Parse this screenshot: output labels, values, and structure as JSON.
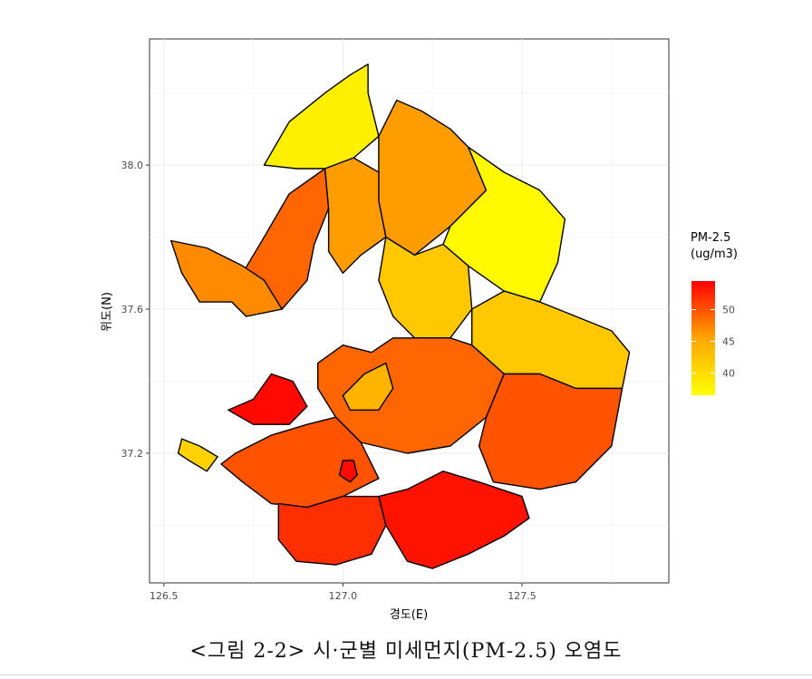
{
  "chart_data": {
    "type": "heatmap",
    "xlabel": "경도(E)",
    "ylabel": "위도(N)",
    "xlim": [
      126.46,
      127.91
    ],
    "ylim": [
      36.84,
      38.35
    ],
    "x_ticks": [
      "126.5",
      "127.0",
      "127.5"
    ],
    "y_ticks": [
      "37.2",
      "37.6",
      "38.0"
    ],
    "grid": true,
    "legend": {
      "title_line1": "PM-2.5",
      "title_line2": "(ug/m3)",
      "ticks": [
        "40",
        "45",
        "50"
      ],
      "min": 36.5,
      "max": 54.5,
      "placement": "right",
      "colors": [
        "#ffff00",
        "#ffa500",
        "#ff0000"
      ]
    },
    "regions": [
      {
        "value": 38,
        "poly": [
          [
            126.78,
            38.0
          ],
          [
            126.85,
            38.12
          ],
          [
            126.95,
            38.2
          ],
          [
            127.02,
            38.25
          ],
          [
            127.07,
            38.28
          ],
          [
            127.07,
            38.2
          ],
          [
            127.1,
            38.08
          ],
          [
            127.03,
            38.02
          ],
          [
            126.95,
            37.99
          ],
          [
            126.87,
            37.99
          ],
          [
            126.78,
            38.0
          ]
        ]
      },
      {
        "value": 46,
        "poly": [
          [
            127.1,
            38.08
          ],
          [
            127.15,
            38.18
          ],
          [
            127.22,
            38.15
          ],
          [
            127.3,
            38.1
          ],
          [
            127.35,
            38.05
          ],
          [
            127.4,
            37.93
          ],
          [
            127.3,
            37.83
          ],
          [
            127.2,
            37.75
          ],
          [
            127.12,
            37.8
          ],
          [
            127.1,
            37.9
          ],
          [
            127.1,
            38.08
          ]
        ]
      },
      {
        "value": 37,
        "poly": [
          [
            127.35,
            38.05
          ],
          [
            127.45,
            37.98
          ],
          [
            127.55,
            37.93
          ],
          [
            127.62,
            37.85
          ],
          [
            127.6,
            37.73
          ],
          [
            127.55,
            37.62
          ],
          [
            127.45,
            37.65
          ],
          [
            127.35,
            37.72
          ],
          [
            127.28,
            37.78
          ],
          [
            127.3,
            37.83
          ],
          [
            127.4,
            37.93
          ],
          [
            127.35,
            38.05
          ]
        ]
      },
      {
        "value": 49,
        "poly": [
          [
            126.69,
            37.62
          ],
          [
            126.72,
            37.7
          ],
          [
            126.78,
            37.8
          ],
          [
            126.85,
            37.92
          ],
          [
            126.95,
            37.99
          ],
          [
            126.96,
            37.88
          ],
          [
            126.92,
            37.78
          ],
          [
            126.9,
            37.68
          ],
          [
            126.83,
            37.6
          ],
          [
            126.73,
            37.58
          ],
          [
            126.69,
            37.62
          ]
        ]
      },
      {
        "value": 47,
        "poly": [
          [
            126.52,
            37.79
          ],
          [
            126.55,
            37.7
          ],
          [
            126.6,
            37.62
          ],
          [
            126.69,
            37.62
          ],
          [
            126.73,
            37.58
          ],
          [
            126.83,
            37.6
          ],
          [
            126.78,
            37.68
          ],
          [
            126.72,
            37.72
          ],
          [
            126.62,
            37.77
          ],
          [
            126.52,
            37.79
          ]
        ]
      },
      {
        "value": 46,
        "poly": [
          [
            126.95,
            37.99
          ],
          [
            127.03,
            38.02
          ],
          [
            127.1,
            37.98
          ],
          [
            127.1,
            37.9
          ],
          [
            127.12,
            37.8
          ],
          [
            127.05,
            37.75
          ],
          [
            127.0,
            37.7
          ],
          [
            126.96,
            37.76
          ],
          [
            126.96,
            37.88
          ],
          [
            126.95,
            37.99
          ]
        ]
      },
      {
        "value": 42,
        "poly": [
          [
            127.12,
            37.8
          ],
          [
            127.2,
            37.75
          ],
          [
            127.28,
            37.78
          ],
          [
            127.35,
            37.72
          ],
          [
            127.36,
            37.6
          ],
          [
            127.3,
            37.52
          ],
          [
            127.2,
            37.52
          ],
          [
            127.14,
            37.58
          ],
          [
            127.1,
            37.68
          ],
          [
            127.12,
            37.8
          ]
        ]
      },
      {
        "value": 42,
        "poly": [
          [
            127.36,
            37.6
          ],
          [
            127.45,
            37.65
          ],
          [
            127.55,
            37.62
          ],
          [
            127.65,
            37.58
          ],
          [
            127.75,
            37.54
          ],
          [
            127.8,
            37.48
          ],
          [
            127.78,
            37.38
          ],
          [
            127.65,
            37.38
          ],
          [
            127.55,
            37.42
          ],
          [
            127.45,
            37.42
          ],
          [
            127.36,
            37.5
          ],
          [
            127.36,
            37.6
          ]
        ]
      },
      {
        "value": 49,
        "poly": [
          [
            126.93,
            37.45
          ],
          [
            127.0,
            37.5
          ],
          [
            127.08,
            37.48
          ],
          [
            127.14,
            37.52
          ],
          [
            127.2,
            37.52
          ],
          [
            127.3,
            37.52
          ],
          [
            127.36,
            37.5
          ],
          [
            127.45,
            37.42
          ],
          [
            127.4,
            37.3
          ],
          [
            127.3,
            37.22
          ],
          [
            127.18,
            37.2
          ],
          [
            127.05,
            37.23
          ],
          [
            126.98,
            37.3
          ],
          [
            126.93,
            37.38
          ],
          [
            126.93,
            37.45
          ]
        ]
      },
      {
        "value": 50,
        "poly": [
          [
            127.45,
            37.42
          ],
          [
            127.55,
            37.42
          ],
          [
            127.65,
            37.38
          ],
          [
            127.78,
            37.38
          ],
          [
            127.75,
            37.22
          ],
          [
            127.65,
            37.12
          ],
          [
            127.55,
            37.1
          ],
          [
            127.42,
            37.12
          ],
          [
            127.38,
            37.22
          ],
          [
            127.4,
            37.3
          ],
          [
            127.45,
            37.42
          ]
        ]
      },
      {
        "value": 50,
        "poly": [
          [
            126.7,
            37.2
          ],
          [
            126.8,
            37.25
          ],
          [
            126.9,
            37.28
          ],
          [
            126.98,
            37.3
          ],
          [
            127.05,
            37.23
          ],
          [
            127.1,
            37.13
          ],
          [
            127.0,
            37.08
          ],
          [
            126.9,
            37.05
          ],
          [
            126.8,
            37.06
          ],
          [
            126.72,
            37.12
          ],
          [
            126.66,
            37.17
          ],
          [
            126.7,
            37.2
          ]
        ]
      },
      {
        "value": 52,
        "poly": [
          [
            126.82,
            37.06
          ],
          [
            126.9,
            37.05
          ],
          [
            127.0,
            37.08
          ],
          [
            127.1,
            37.08
          ],
          [
            127.12,
            37.0
          ],
          [
            127.08,
            36.92
          ],
          [
            126.98,
            36.89
          ],
          [
            126.87,
            36.9
          ],
          [
            126.82,
            36.96
          ],
          [
            126.82,
            37.06
          ]
        ]
      },
      {
        "value": 53.5,
        "poly": [
          [
            127.12,
            37.0
          ],
          [
            127.1,
            37.08
          ],
          [
            127.18,
            37.1
          ],
          [
            127.28,
            37.15
          ],
          [
            127.38,
            37.12
          ],
          [
            127.5,
            37.08
          ],
          [
            127.52,
            37.02
          ],
          [
            127.45,
            36.97
          ],
          [
            127.35,
            36.92
          ],
          [
            127.25,
            36.88
          ],
          [
            127.18,
            36.9
          ],
          [
            127.12,
            37.0
          ]
        ]
      },
      {
        "value": 54,
        "poly": [
          [
            126.68,
            37.32
          ],
          [
            126.75,
            37.35
          ],
          [
            126.8,
            37.42
          ],
          [
            126.86,
            37.4
          ],
          [
            126.9,
            37.33
          ],
          [
            126.85,
            37.28
          ],
          [
            126.75,
            37.28
          ],
          [
            126.68,
            37.32
          ]
        ]
      },
      {
        "value": 41,
        "poly": [
          [
            126.55,
            37.24
          ],
          [
            126.6,
            37.22
          ],
          [
            126.65,
            37.19
          ],
          [
            126.62,
            37.15
          ],
          [
            126.57,
            37.18
          ],
          [
            126.54,
            37.2
          ],
          [
            126.55,
            37.24
          ]
        ]
      },
      {
        "value": 44,
        "poly": [
          [
            127.0,
            37.36
          ],
          [
            127.06,
            37.42
          ],
          [
            127.12,
            37.45
          ],
          [
            127.14,
            37.38
          ],
          [
            127.1,
            37.32
          ],
          [
            127.02,
            37.32
          ],
          [
            127.0,
            37.36
          ]
        ]
      },
      {
        "value": 54,
        "poly": [
          [
            127.0,
            37.18
          ],
          [
            127.03,
            37.18
          ],
          [
            127.04,
            37.14
          ],
          [
            127.02,
            37.12
          ],
          [
            126.99,
            37.14
          ],
          [
            127.0,
            37.18
          ]
        ]
      }
    ]
  },
  "caption": "<그림 2-2> 시·군별 미세먼지(PM-2.5) 오염도"
}
